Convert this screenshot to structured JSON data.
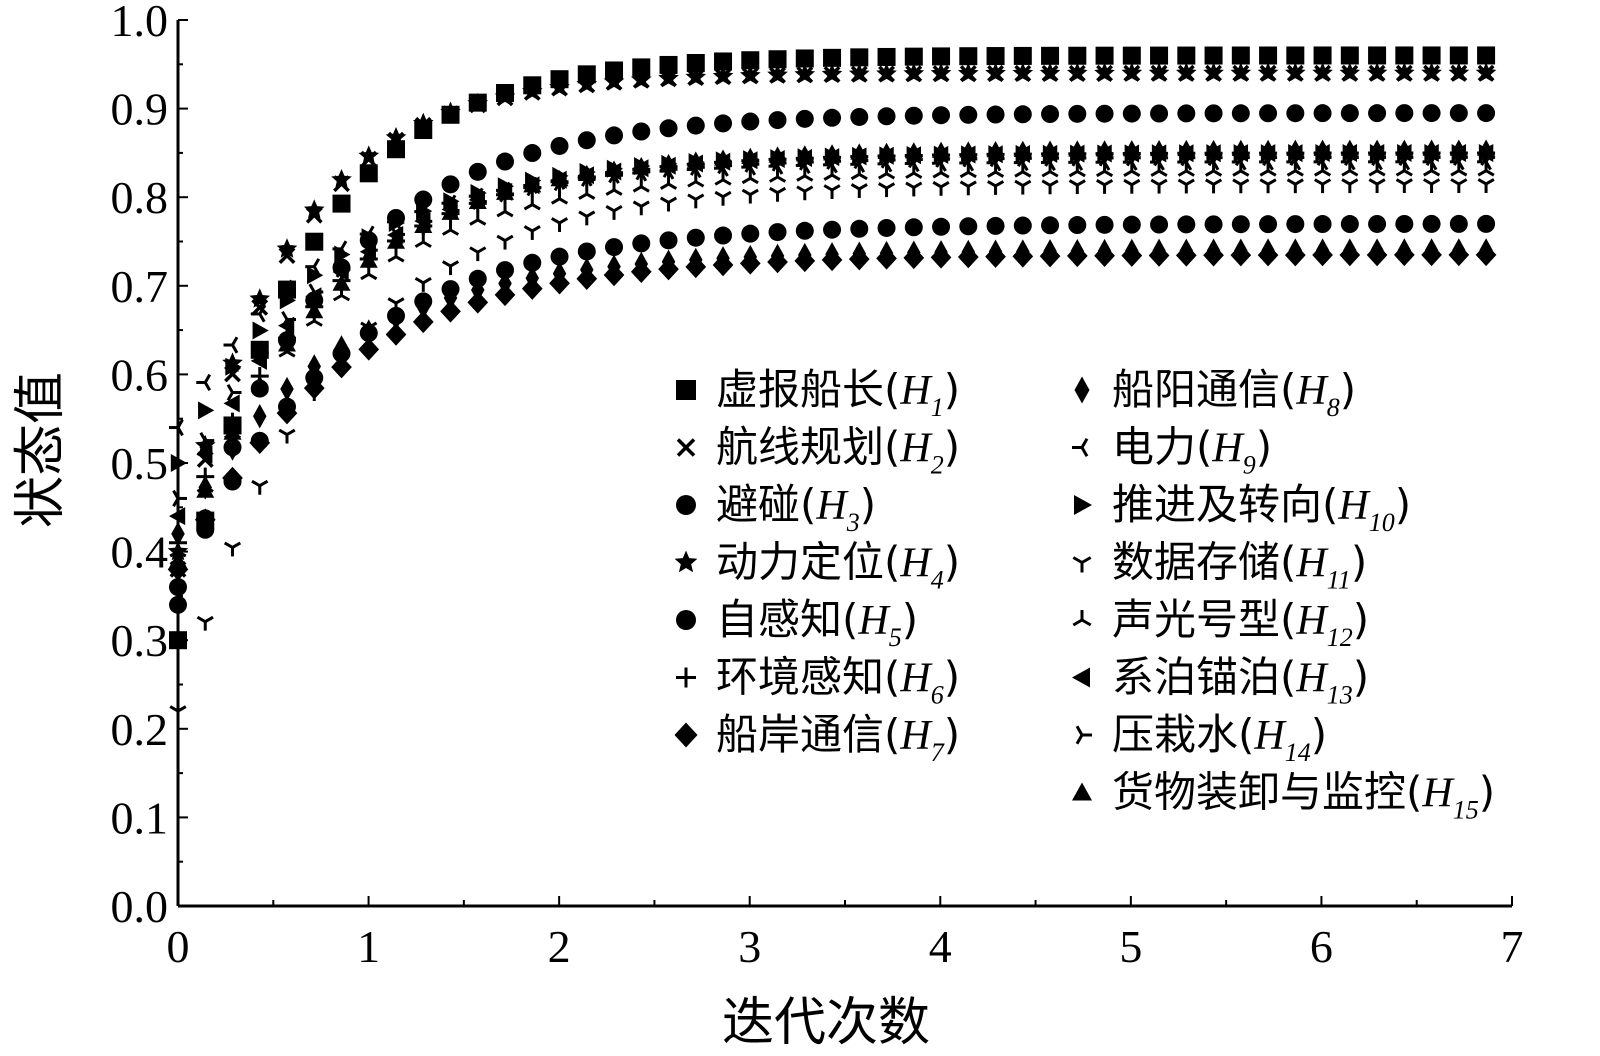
{
  "chart_data": {
    "type": "scatter",
    "title": "",
    "xlabel": "迭代次数",
    "ylabel": "状态值",
    "xlim": [
      0,
      7
    ],
    "ylim": [
      0.0,
      1.0
    ],
    "xticks": [
      "0",
      "1",
      "2",
      "3",
      "4",
      "5",
      "6",
      "7"
    ],
    "yticks": [
      "0.0",
      "0.1",
      "0.2",
      "0.3",
      "0.4",
      "0.5",
      "0.6",
      "0.7",
      "0.8",
      "0.9",
      "1.0"
    ],
    "grid": false,
    "legend_placement": "center-right",
    "x_step": 0.143,
    "series": [
      {
        "name": "虚报船长(H1)",
        "label": "虚报船长",
        "sub": "1",
        "marker": "square",
        "start": 0.3,
        "end": 0.96,
        "rate": 1.6
      },
      {
        "name": "航线规划(H2)",
        "label": "航线规划",
        "sub": "2",
        "marker": "x",
        "start": 0.38,
        "end": 0.94,
        "rate": 1.75
      },
      {
        "name": "避碰(H3)",
        "label": "避碰",
        "sub": "3",
        "marker": "circle",
        "start": 0.34,
        "end": 0.895,
        "rate": 1.35
      },
      {
        "name": "动力定位(H4)",
        "label": "动力定位",
        "sub": "4",
        "marker": "star",
        "start": 0.4,
        "end": 0.94,
        "rate": 1.75
      },
      {
        "name": "自感知(H5)",
        "label": "自感知",
        "sub": "5",
        "marker": "circle",
        "start": 0.36,
        "end": 0.77,
        "rate": 1.2
      },
      {
        "name": "环境感知(H6)",
        "label": "环境感知",
        "sub": "6",
        "marker": "plus",
        "start": 0.41,
        "end": 0.85,
        "rate": 1.3
      },
      {
        "name": "船岸通信(H7)",
        "label": "船岸通信",
        "sub": "7",
        "marker": "diamond",
        "start": 0.38,
        "end": 0.735,
        "rate": 1.2
      },
      {
        "name": "船阳通信(H8)",
        "label": "船阳通信",
        "sub": "8",
        "marker": "thin-diamond",
        "start": 0.42,
        "end": 0.74,
        "rate": 1.25
      },
      {
        "name": "电力(H9)",
        "label": "电力",
        "sub": "9",
        "marker": "tri-left",
        "start": 0.54,
        "end": 0.84,
        "rate": 1.3
      },
      {
        "name": "推进及转向(H10)",
        "label": "推进及转向",
        "sub": "10",
        "marker": "triangle-right",
        "start": 0.5,
        "end": 0.85,
        "rate": 1.3
      },
      {
        "name": "数据存储(H11)",
        "label": "数据存储",
        "sub": "11",
        "marker": "tri-down",
        "start": 0.22,
        "end": 0.815,
        "rate": 1.3
      },
      {
        "name": "声光号型(H12)",
        "label": "声光号型",
        "sub": "12",
        "marker": "tri-up",
        "start": 0.4,
        "end": 0.83,
        "rate": 1.3
      },
      {
        "name": "系泊锚泊(H13)",
        "label": "系泊锚泊",
        "sub": "13",
        "marker": "triangle-left",
        "start": 0.44,
        "end": 0.85,
        "rate": 1.3
      },
      {
        "name": "压栽水(H14)",
        "label": "压栽水",
        "sub": "14",
        "marker": "tri-right",
        "start": 0.46,
        "end": 0.845,
        "rate": 1.3
      },
      {
        "name": "货物装卸与监控(H15)",
        "label": "货物装卸与监控",
        "sub": "15",
        "marker": "triangle-up",
        "start": 0.39,
        "end": 0.855,
        "rate": 1.3
      }
    ]
  }
}
